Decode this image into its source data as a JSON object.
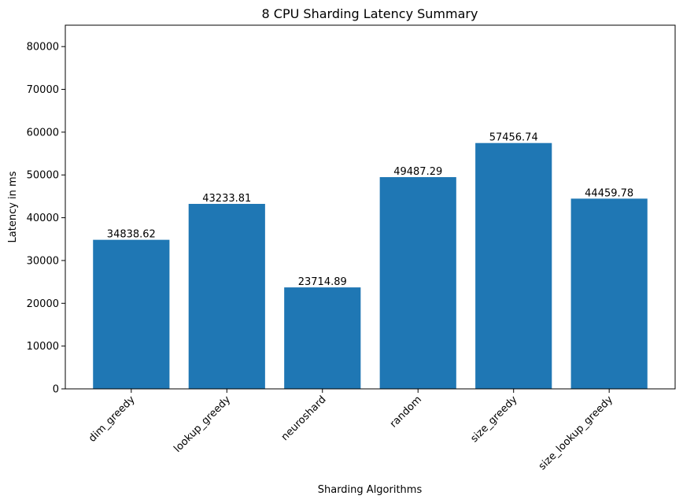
{
  "chart_data": {
    "type": "bar",
    "title": "8 CPU Sharding Latency Summary",
    "xlabel": "Sharding Algorithms",
    "ylabel": "Latency in ms",
    "categories": [
      "dim_greedy",
      "lookup_greedy",
      "neuroshard",
      "random",
      "size_greedy",
      "size_lookup_greedy"
    ],
    "values": [
      34838.62,
      43233.81,
      23714.89,
      49487.29,
      57456.74,
      44459.78
    ],
    "value_labels": [
      "34838.62",
      "43233.81",
      "23714.89",
      "49487.29",
      "57456.74",
      "44459.78"
    ],
    "ylim": [
      0,
      85000
    ],
    "yticks": [
      0,
      10000,
      20000,
      30000,
      40000,
      50000,
      60000,
      70000,
      80000
    ],
    "ytick_labels": [
      "0",
      "10000",
      "20000",
      "30000",
      "40000",
      "50000",
      "60000",
      "70000",
      "80000"
    ],
    "bar_color": "#1f77b4",
    "grid": false,
    "xtick_rotation_deg": 45
  }
}
